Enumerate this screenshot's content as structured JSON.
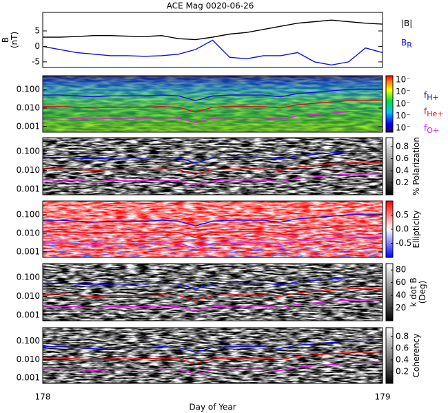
{
  "chart_data": [
    {
      "type": "line",
      "title": "ACE Mag 0020-06-26",
      "ylabel": [
        "B",
        "(nT)"
      ],
      "x": [
        178,
        178.05,
        178.1,
        178.15,
        178.2,
        178.25,
        178.3,
        178.35,
        178.4,
        178.45,
        178.5,
        178.55,
        178.6,
        178.65,
        178.7,
        178.75,
        178.8,
        178.85,
        178.9,
        178.95,
        179
      ],
      "xlim": [
        178,
        179
      ],
      "ylim": [
        -6.8,
        11
      ],
      "yticks": [
        -5,
        0,
        5
      ],
      "series": [
        {
          "name": "|B|",
          "color": "#000000",
          "values": [
            3,
            3,
            3.2,
            3.5,
            3.5,
            3.3,
            3.2,
            3.5,
            2.5,
            2.2,
            3,
            4,
            4.5,
            5.5,
            6.5,
            7.5,
            8,
            8.5,
            8,
            7.5,
            7.2
          ]
        },
        {
          "name": "B",
          "subscript": "R",
          "color": "#1010e0",
          "values": [
            0,
            -1,
            -2,
            -2.5,
            -3,
            -3,
            -3.2,
            -3,
            -2.5,
            -1,
            2,
            -3.5,
            -4,
            -3,
            -3,
            -2,
            -5,
            -6,
            -5,
            -0.5,
            -2
          ]
        }
      ]
    },
    {
      "type": "spectrogram",
      "colormap": "rainbow",
      "log": true,
      "xlim": [
        178,
        179
      ],
      "ylim": [
        0.0005,
        0.55
      ],
      "yticks": [
        {
          "value": 0.1,
          "label": "0.100"
        },
        {
          "value": 0.01,
          "label": "0.010"
        },
        0.001
      ],
      "ctick_labels": [
        "10⁻",
        "10⁻",
        "10⁻",
        "10⁻",
        "10⁻"
      ],
      "x": [
        178,
        178.05,
        178.1,
        178.15,
        178.2,
        178.25,
        178.3,
        178.35,
        178.4,
        178.45,
        178.5,
        178.55,
        178.6,
        178.65,
        178.7,
        178.75,
        178.8,
        178.85,
        178.9,
        178.95,
        179
      ],
      "series": [
        {
          "name": "f",
          "subscript": "H+",
          "color": "#1010e0",
          "values": [
            0.05,
            0.05,
            0.045,
            0.04,
            0.045,
            0.045,
            0.045,
            0.05,
            0.045,
            0.025,
            0.045,
            0.05,
            0.05,
            0.05,
            0.04,
            0.06,
            0.07,
            0.085,
            0.1,
            0.1,
            0.1
          ]
        },
        {
          "name": "f",
          "subscript": "He+",
          "color": "#e01010",
          "values": [
            0.012,
            0.012,
            0.011,
            0.01,
            0.011,
            0.011,
            0.011,
            0.012,
            0.011,
            0.006,
            0.011,
            0.012,
            0.012,
            0.012,
            0.01,
            0.015,
            0.018,
            0.021,
            0.025,
            0.025,
            0.026
          ]
        },
        {
          "name": "f",
          "subscript": "O+",
          "color": "#e020e0",
          "values": [
            0.003,
            0.003,
            0.0028,
            0.0025,
            0.0028,
            0.0028,
            0.0028,
            0.003,
            0.0028,
            0.0016,
            0.0028,
            0.003,
            0.003,
            0.003,
            0.0025,
            0.0038,
            0.0045,
            0.0053,
            0.0063,
            0.0063,
            0.0065
          ]
        }
      ]
    },
    {
      "type": "spectrogram",
      "colormap": "gray",
      "log": true,
      "xlim": [
        178,
        179
      ],
      "ylim": [
        0.0005,
        0.55
      ],
      "yticks": [
        {
          "value": 0.1,
          "label": "0.100"
        },
        {
          "value": 0.01,
          "label": "0.010"
        },
        0.001
      ],
      "clim": [
        0,
        0.95
      ],
      "cticks": [
        0.2,
        0.4,
        0.6,
        0.8
      ],
      "clabel": [
        "% Polarization"
      ]
    },
    {
      "type": "spectrogram",
      "colormap": "bwr",
      "log": true,
      "xlim": [
        178,
        179
      ],
      "ylim": [
        0.0005,
        0.55
      ],
      "yticks": [
        {
          "value": 0.1,
          "label": "0.100"
        },
        {
          "value": 0.01,
          "label": "0.010"
        },
        0.001
      ],
      "clim": [
        -1,
        1
      ],
      "cticks": [
        -0.5,
        {
          "value": 0,
          "label": "0.0"
        },
        0.5
      ],
      "clabel": [
        "Ellipticity"
      ]
    },
    {
      "type": "spectrogram",
      "colormap": "gray",
      "log": true,
      "xlim": [
        178,
        179
      ],
      "ylim": [
        0.0005,
        0.55
      ],
      "yticks": [
        {
          "value": 0.1,
          "label": "0.100"
        },
        {
          "value": 0.01,
          "label": "0.010"
        },
        0.001
      ],
      "clim": [
        0,
        90
      ],
      "cticks": [
        20,
        40,
        60,
        80
      ],
      "clabel": [
        "k dot B",
        "(Deg)"
      ]
    },
    {
      "type": "spectrogram",
      "colormap": "gray",
      "log": true,
      "xlim": [
        178,
        179
      ],
      "ylim": [
        0.0005,
        0.55
      ],
      "yticks": [
        {
          "value": 0.1,
          "label": "0.100"
        },
        {
          "value": 0.01,
          "label": "0.010"
        },
        0.001
      ],
      "clim": [
        0,
        0.95
      ],
      "cticks": [
        0.2,
        0.4,
        0.6,
        0.8
      ],
      "clabel": [
        "Coherency"
      ],
      "xticks": [
        178,
        179
      ],
      "xlabel": "Day of Year"
    }
  ]
}
